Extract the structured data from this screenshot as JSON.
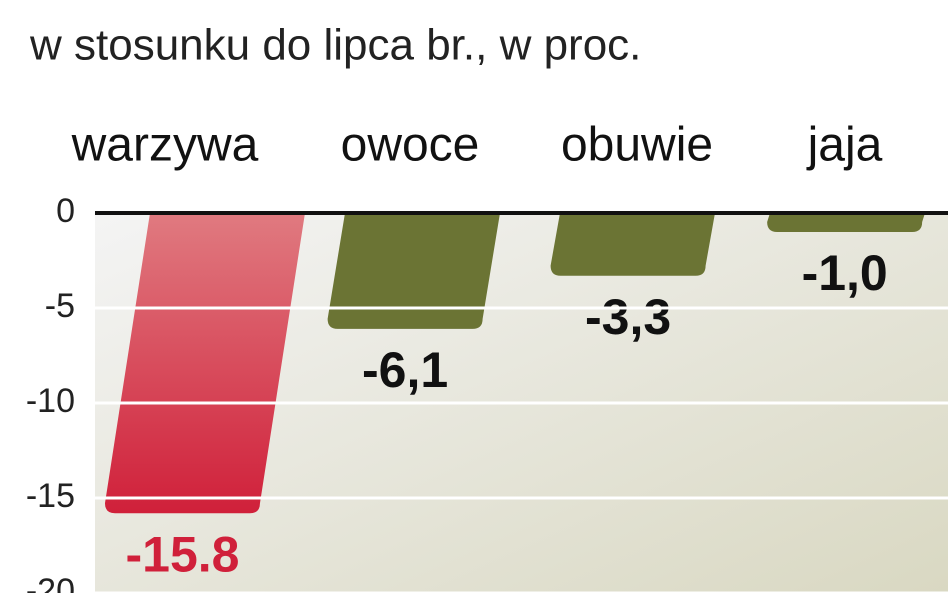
{
  "chart_data": {
    "type": "bar",
    "subtitle": "w stosunku do lipca br., w proc.",
    "categories": [
      "warzywa",
      "owoce",
      "obuwie",
      "jaja"
    ],
    "values": [
      -15.8,
      -6.1,
      -3.3,
      -1.0
    ],
    "value_labels": [
      "-15.8",
      "-6,1",
      "-3,3",
      "-1,0"
    ],
    "colors": [
      "#d0203a",
      "#6b7434",
      "#6b7434",
      "#6b7434"
    ],
    "ylim": [
      -20,
      0
    ],
    "yticks": [
      0,
      -5,
      -10,
      -15,
      -20
    ],
    "grid": true
  }
}
